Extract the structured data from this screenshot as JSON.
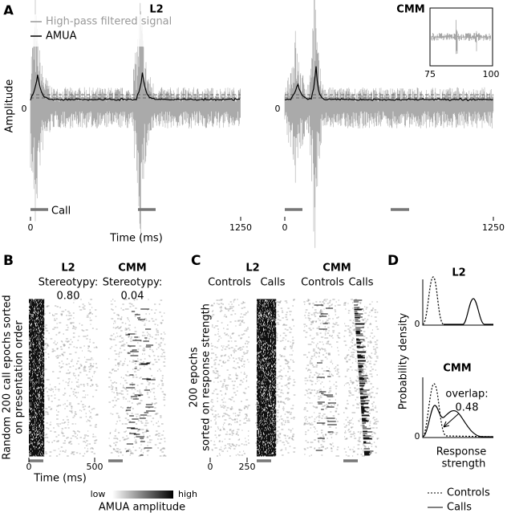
{
  "panel_a": {
    "label": "A",
    "title_left": "L2",
    "title_right": "CMM",
    "legend": [
      "High-pass filtered signal",
      "AMUA"
    ],
    "y_label": "Amplitude",
    "y_tick": "0",
    "x_label": "Time (ms)",
    "x_ticks": [
      "0",
      "1250"
    ],
    "call": "Call",
    "inset_x_ticks": [
      "75",
      "100"
    ]
  },
  "panel_b": {
    "label": "B",
    "y_label": [
      "Random 200 call epochs sorted",
      "on presentation order"
    ],
    "columns": [
      {
        "title": "L2",
        "stat_label": "Stereotypy:",
        "stat": "0.80"
      },
      {
        "title": "CMM",
        "stat_label": "Stereotypy:",
        "stat": "0.04"
      }
    ],
    "x_ticks": [
      "0",
      "500"
    ],
    "x_label": "Time (ms)",
    "colorbar": {
      "low": "low",
      "high": "high",
      "label": "AMUA amplitude"
    }
  },
  "panel_c": {
    "label": "C",
    "titles": [
      "L2",
      "CMM"
    ],
    "columns": [
      "Controls",
      "Calls",
      "Controls",
      "Calls"
    ],
    "y_label": [
      "200 epochs",
      "sorted on response strength"
    ],
    "x_ticks": [
      "0",
      "250"
    ]
  },
  "panel_d": {
    "label": "D",
    "titles": [
      "L2",
      "CMM"
    ],
    "y_label": "Probability density",
    "y_tick": "0",
    "x_label": [
      "Response",
      "strength"
    ],
    "annotation": [
      "overlap:",
      "0.48"
    ],
    "legend": [
      "Controls",
      "Calls"
    ]
  }
}
